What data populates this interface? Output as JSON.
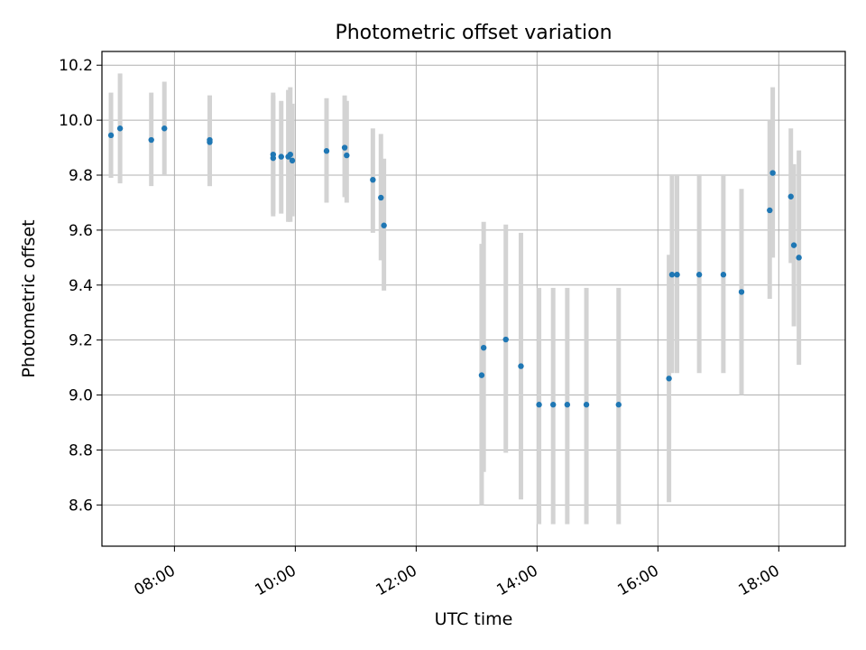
{
  "chart_data": {
    "type": "scatter",
    "title": "Photometric offset variation",
    "xlabel": "UTC time",
    "ylabel": "Photometric offset",
    "xlim": [
      "06:48",
      "19:06"
    ],
    "ylim": [
      8.45,
      10.25
    ],
    "grid": true,
    "xticks": [
      "08:00",
      "10:00",
      "12:00",
      "14:00",
      "16:00",
      "18:00"
    ],
    "yticks": [
      "8.6",
      "8.8",
      "9.0",
      "9.2",
      "9.4",
      "9.6",
      "9.8",
      "10.0",
      "10.2"
    ],
    "colors": {
      "point": "#1f77b4",
      "errorbar": "#d3d3d3",
      "grid": "#b0b0b0"
    },
    "points": [
      {
        "x": "06:57",
        "y": 9.945,
        "lo": 9.79,
        "hi": 10.1
      },
      {
        "x": "07:06",
        "y": 9.97,
        "lo": 9.77,
        "hi": 10.17
      },
      {
        "x": "07:37",
        "y": 9.928,
        "lo": 9.76,
        "hi": 10.1
      },
      {
        "x": "07:50",
        "y": 9.97,
        "lo": 9.8,
        "hi": 10.14
      },
      {
        "x": "08:35",
        "y": 9.928,
        "lo": 9.76,
        "hi": 10.09
      },
      {
        "x": "08:35",
        "y": 9.92,
        "lo": 9.76,
        "hi": 10.09
      },
      {
        "x": "09:38",
        "y": 9.875,
        "lo": 9.65,
        "hi": 10.1
      },
      {
        "x": "09:38",
        "y": 9.862,
        "lo": 9.66,
        "hi": 10.09
      },
      {
        "x": "09:46",
        "y": 9.867,
        "lo": 9.66,
        "hi": 10.07
      },
      {
        "x": "09:53",
        "y": 9.867,
        "lo": 9.63,
        "hi": 10.11
      },
      {
        "x": "09:55",
        "y": 9.875,
        "lo": 9.63,
        "hi": 10.12
      },
      {
        "x": "09:57",
        "y": 9.853,
        "lo": 9.65,
        "hi": 10.06
      },
      {
        "x": "10:31",
        "y": 9.888,
        "lo": 9.7,
        "hi": 10.08
      },
      {
        "x": "10:49",
        "y": 9.9,
        "lo": 9.72,
        "hi": 10.09
      },
      {
        "x": "10:51",
        "y": 9.872,
        "lo": 9.7,
        "hi": 10.07
      },
      {
        "x": "11:17",
        "y": 9.783,
        "lo": 9.59,
        "hi": 9.97
      },
      {
        "x": "11:25",
        "y": 9.718,
        "lo": 9.49,
        "hi": 9.95
      },
      {
        "x": "11:28",
        "y": 9.617,
        "lo": 9.38,
        "hi": 9.86
      },
      {
        "x": "13:05",
        "y": 9.072,
        "lo": 8.6,
        "hi": 9.55
      },
      {
        "x": "13:07",
        "y": 9.172,
        "lo": 8.72,
        "hi": 9.63
      },
      {
        "x": "13:29",
        "y": 9.202,
        "lo": 8.79,
        "hi": 9.62
      },
      {
        "x": "13:44",
        "y": 9.105,
        "lo": 8.62,
        "hi": 9.59
      },
      {
        "x": "14:02",
        "y": 8.965,
        "lo": 8.53,
        "hi": 9.39
      },
      {
        "x": "14:16",
        "y": 8.965,
        "lo": 8.53,
        "hi": 9.39
      },
      {
        "x": "14:30",
        "y": 8.965,
        "lo": 8.53,
        "hi": 9.39
      },
      {
        "x": "14:49",
        "y": 8.965,
        "lo": 8.53,
        "hi": 9.39
      },
      {
        "x": "15:21",
        "y": 8.965,
        "lo": 8.53,
        "hi": 9.39
      },
      {
        "x": "16:11",
        "y": 9.06,
        "lo": 8.61,
        "hi": 9.51
      },
      {
        "x": "16:14",
        "y": 9.438,
        "lo": 9.08,
        "hi": 9.8
      },
      {
        "x": "16:19",
        "y": 9.438,
        "lo": 9.08,
        "hi": 9.8
      },
      {
        "x": "16:41",
        "y": 9.438,
        "lo": 9.08,
        "hi": 9.8
      },
      {
        "x": "17:05",
        "y": 9.438,
        "lo": 9.08,
        "hi": 9.8
      },
      {
        "x": "17:23",
        "y": 9.375,
        "lo": 9.0,
        "hi": 9.75
      },
      {
        "x": "17:51",
        "y": 9.672,
        "lo": 9.35,
        "hi": 10.0
      },
      {
        "x": "17:54",
        "y": 9.808,
        "lo": 9.5,
        "hi": 10.12
      },
      {
        "x": "18:12",
        "y": 9.722,
        "lo": 9.48,
        "hi": 9.97
      },
      {
        "x": "18:15",
        "y": 9.545,
        "lo": 9.25,
        "hi": 9.84
      },
      {
        "x": "18:20",
        "y": 9.5,
        "lo": 9.11,
        "hi": 9.89
      }
    ]
  }
}
